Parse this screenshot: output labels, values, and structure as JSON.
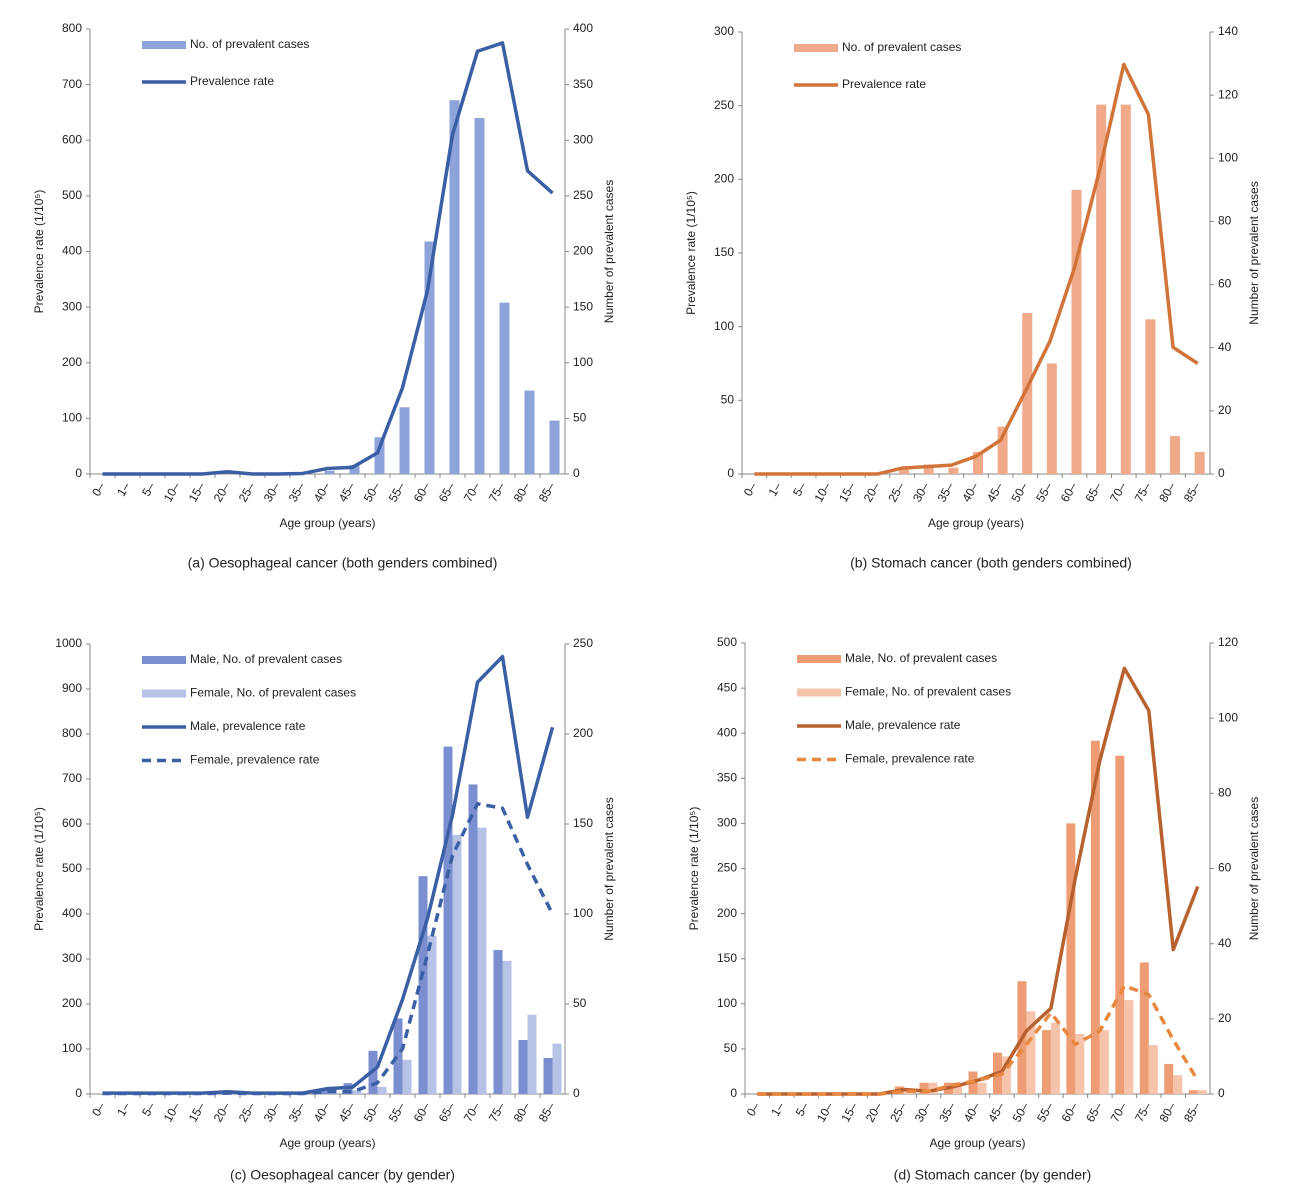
{
  "chart_data": [
    {
      "type": "combo",
      "caption": "(a) Oesophageal cancer (both genders combined)",
      "x_label": "Age group (years)",
      "y_label": "Prevalence rate (1/10⁵)",
      "y2_label": "Number of prevalent cases",
      "categories": [
        "0–",
        "1–",
        "5–",
        "10–",
        "15–",
        "20–",
        "25–",
        "30–",
        "35–",
        "40–",
        "45–",
        "50–",
        "55–",
        "60–",
        "65–",
        "70–",
        "75–",
        "80–",
        "85–"
      ],
      "ylim": [
        0,
        800
      ],
      "yticks": [
        0,
        100,
        200,
        300,
        400,
        500,
        600,
        700,
        800
      ],
      "y2lim": [
        0,
        400
      ],
      "y2ticks": [
        0,
        50,
        100,
        150,
        200,
        250,
        300,
        350,
        400
      ],
      "legend": "upper left",
      "series": [
        {
          "name": "No. of prevalent cases",
          "mark": "bar",
          "axis": "y2",
          "color": "#8ea3d9",
          "values": [
            0,
            0,
            0,
            0,
            0,
            0,
            0,
            0,
            0,
            3,
            8,
            33,
            60,
            209,
            336,
            320,
            154,
            75,
            48
          ]
        },
        {
          "name": "Prevalence rate",
          "mark": "line",
          "axis": "y",
          "color": "#3a5fa5",
          "line_style": "solid",
          "values": [
            0,
            0,
            0,
            0,
            0,
            4,
            0,
            0,
            1,
            10,
            12,
            38,
            155,
            330,
            610,
            760,
            775,
            545,
            505
          ]
        }
      ]
    },
    {
      "type": "combo",
      "caption": "(b) Stomach cancer (both genders combined)",
      "x_label": "Age group (years)",
      "y_label": "Prevalence rate (1/10⁵)",
      "y2_label": "Number of prevalent cases",
      "categories": [
        "0–",
        "1–",
        "5–",
        "10–",
        "15–",
        "20–",
        "25–",
        "30–",
        "35–",
        "40–",
        "45–",
        "50–",
        "55–",
        "60–",
        "65–",
        "70–",
        "75–",
        "80–",
        "85–"
      ],
      "ylim": [
        0,
        300
      ],
      "yticks": [
        0,
        50,
        100,
        150,
        200,
        250,
        300
      ],
      "y2lim": [
        0,
        140
      ],
      "y2ticks": [
        0,
        20,
        40,
        60,
        80,
        100,
        120,
        140
      ],
      "legend": "upper left",
      "series": [
        {
          "name": "No. of prevalent cases",
          "mark": "bar",
          "axis": "y2",
          "color": "#f0aa8a",
          "values": [
            0,
            0,
            0,
            0,
            0,
            0,
            2,
            3,
            2,
            7,
            15,
            51,
            35,
            90,
            117,
            117,
            49,
            12,
            7
          ]
        },
        {
          "name": "Prevalence rate",
          "mark": "line",
          "axis": "y",
          "color": "#d2733a",
          "line_style": "solid",
          "values": [
            0,
            0,
            0,
            0,
            0,
            0,
            4,
            5,
            6,
            12,
            23,
            56,
            90,
            140,
            205,
            278,
            244,
            86,
            75
          ]
        }
      ]
    },
    {
      "type": "combo",
      "caption": "(c) Oesophageal cancer (by gender)",
      "x_label": "Age group (years)",
      "y_label": "Prevalence rate (1/10⁵)",
      "y2_label": "Number of prevalent cases",
      "categories": [
        "0–",
        "1–",
        "5–",
        "10–",
        "15–",
        "20–",
        "25–",
        "30–",
        "35–",
        "40–",
        "45–",
        "50–",
        "55–",
        "60–",
        "65–",
        "70–",
        "75–",
        "80–",
        "85–"
      ],
      "ylim": [
        0,
        1000
      ],
      "yticks": [
        0,
        100,
        200,
        300,
        400,
        500,
        600,
        700,
        800,
        900,
        1000
      ],
      "y2lim": [
        0,
        250
      ],
      "y2ticks": [
        0,
        50,
        100,
        150,
        200,
        250
      ],
      "legend": "upper left",
      "series": [
        {
          "name": "Male, No. of prevalent cases",
          "mark": "bar",
          "axis": "y2",
          "color": "#7b8fd0",
          "values": [
            0,
            0,
            0,
            0,
            0,
            1,
            0,
            0,
            0,
            2,
            6,
            24,
            42,
            121,
            193,
            172,
            80,
            30,
            20
          ]
        },
        {
          "name": "Female, No. of prevalent cases",
          "mark": "bar",
          "axis": "y2",
          "color": "#b6c2e6",
          "values": [
            0,
            0,
            0,
            0,
            0,
            0,
            0,
            0,
            0,
            1,
            2,
            4,
            19,
            88,
            144,
            148,
            74,
            44,
            28
          ]
        },
        {
          "name": "Male, prevalence rate",
          "mark": "line",
          "axis": "y",
          "color": "#3a5fa5",
          "line_style": "solid",
          "values": [
            2,
            2,
            2,
            2,
            2,
            5,
            2,
            2,
            2,
            12,
            15,
            60,
            210,
            390,
            620,
            915,
            972,
            615,
            815
          ]
        },
        {
          "name": "Female, prevalence rate",
          "mark": "line",
          "axis": "y",
          "color": "#3a5fa5",
          "line_style": "dashed",
          "values": [
            1,
            1,
            1,
            1,
            1,
            2,
            1,
            1,
            1,
            5,
            5,
            25,
            100,
            310,
            530,
            645,
            635,
            510,
            400
          ]
        }
      ]
    },
    {
      "type": "combo",
      "caption": "(d) Stomach cancer (by gender)",
      "x_label": "Age group (years)",
      "y_label": "Prevalence rate (1/10⁵)",
      "y2_label": "Number of prevalent cases",
      "categories": [
        "0–",
        "1–",
        "5–",
        "10–",
        "15–",
        "20–",
        "25–",
        "30–",
        "35–",
        "40–",
        "45–",
        "50–",
        "55–",
        "60–",
        "65–",
        "70–",
        "75–",
        "80–",
        "85–"
      ],
      "ylim": [
        0,
        500
      ],
      "yticks": [
        0,
        50,
        100,
        150,
        200,
        250,
        300,
        350,
        400,
        450,
        500
      ],
      "y2lim": [
        0,
        120
      ],
      "y2ticks": [
        0,
        20,
        40,
        60,
        80,
        100,
        120
      ],
      "legend": "upper left",
      "series": [
        {
          "name": "Male, No. of prevalent cases",
          "mark": "bar",
          "axis": "y2",
          "color": "#ee9c74",
          "values": [
            0,
            0,
            0,
            0,
            0,
            0,
            2,
            3,
            3,
            6,
            11,
            30,
            17,
            72,
            94,
            90,
            35,
            8,
            1
          ]
        },
        {
          "name": "Female, No. of prevalent cases",
          "mark": "bar",
          "axis": "y2",
          "color": "#f6c4ab",
          "values": [
            0,
            0,
            0,
            0,
            0,
            0,
            1,
            3,
            2,
            3,
            10,
            22,
            19,
            16,
            17,
            25,
            13,
            5,
            1
          ]
        },
        {
          "name": "Male, prevalence rate",
          "mark": "line",
          "axis": "y",
          "color": "#b8612e",
          "line_style": "solid",
          "values": [
            0,
            0,
            0,
            0,
            0,
            0,
            5,
            3,
            8,
            15,
            25,
            70,
            95,
            240,
            370,
            472,
            425,
            160,
            230
          ]
        },
        {
          "name": "Female, prevalence rate",
          "mark": "line",
          "axis": "y",
          "color": "#e8873f",
          "line_style": "dashed",
          "values": [
            0,
            0,
            0,
            0,
            0,
            0,
            3,
            3,
            10,
            15,
            22,
            55,
            90,
            55,
            70,
            120,
            110,
            60,
            15
          ]
        }
      ]
    }
  ]
}
